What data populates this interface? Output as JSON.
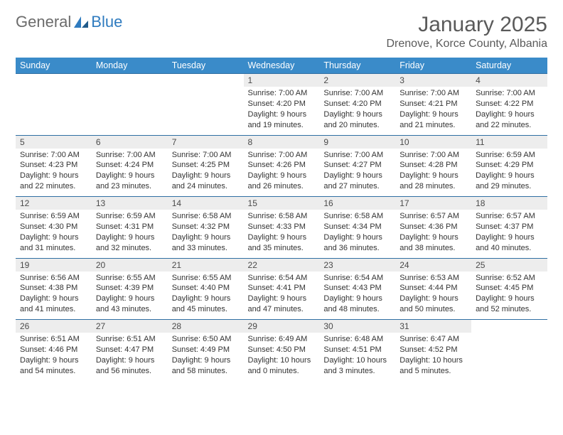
{
  "logo": {
    "text1": "General",
    "text2": "Blue"
  },
  "title": "January 2025",
  "location": "Drenove, Korce County, Albania",
  "colors": {
    "header_bg": "#3a8bc9",
    "header_text": "#ffffff",
    "rule": "#2f6fa3",
    "daynum_bg": "#ededed",
    "logo_gray": "#6b6b6b",
    "logo_blue": "#2f7bbf"
  },
  "weekdays": [
    "Sunday",
    "Monday",
    "Tuesday",
    "Wednesday",
    "Thursday",
    "Friday",
    "Saturday"
  ],
  "weeks": [
    [
      null,
      null,
      null,
      {
        "n": "1",
        "sr": "7:00 AM",
        "ss": "4:20 PM",
        "d1": "9 hours",
        "d2": "and 19 minutes."
      },
      {
        "n": "2",
        "sr": "7:00 AM",
        "ss": "4:20 PM",
        "d1": "9 hours",
        "d2": "and 20 minutes."
      },
      {
        "n": "3",
        "sr": "7:00 AM",
        "ss": "4:21 PM",
        "d1": "9 hours",
        "d2": "and 21 minutes."
      },
      {
        "n": "4",
        "sr": "7:00 AM",
        "ss": "4:22 PM",
        "d1": "9 hours",
        "d2": "and 22 minutes."
      }
    ],
    [
      {
        "n": "5",
        "sr": "7:00 AM",
        "ss": "4:23 PM",
        "d1": "9 hours",
        "d2": "and 22 minutes."
      },
      {
        "n": "6",
        "sr": "7:00 AM",
        "ss": "4:24 PM",
        "d1": "9 hours",
        "d2": "and 23 minutes."
      },
      {
        "n": "7",
        "sr": "7:00 AM",
        "ss": "4:25 PM",
        "d1": "9 hours",
        "d2": "and 24 minutes."
      },
      {
        "n": "8",
        "sr": "7:00 AM",
        "ss": "4:26 PM",
        "d1": "9 hours",
        "d2": "and 26 minutes."
      },
      {
        "n": "9",
        "sr": "7:00 AM",
        "ss": "4:27 PM",
        "d1": "9 hours",
        "d2": "and 27 minutes."
      },
      {
        "n": "10",
        "sr": "7:00 AM",
        "ss": "4:28 PM",
        "d1": "9 hours",
        "d2": "and 28 minutes."
      },
      {
        "n": "11",
        "sr": "6:59 AM",
        "ss": "4:29 PM",
        "d1": "9 hours",
        "d2": "and 29 minutes."
      }
    ],
    [
      {
        "n": "12",
        "sr": "6:59 AM",
        "ss": "4:30 PM",
        "d1": "9 hours",
        "d2": "and 31 minutes."
      },
      {
        "n": "13",
        "sr": "6:59 AM",
        "ss": "4:31 PM",
        "d1": "9 hours",
        "d2": "and 32 minutes."
      },
      {
        "n": "14",
        "sr": "6:58 AM",
        "ss": "4:32 PM",
        "d1": "9 hours",
        "d2": "and 33 minutes."
      },
      {
        "n": "15",
        "sr": "6:58 AM",
        "ss": "4:33 PM",
        "d1": "9 hours",
        "d2": "and 35 minutes."
      },
      {
        "n": "16",
        "sr": "6:58 AM",
        "ss": "4:34 PM",
        "d1": "9 hours",
        "d2": "and 36 minutes."
      },
      {
        "n": "17",
        "sr": "6:57 AM",
        "ss": "4:36 PM",
        "d1": "9 hours",
        "d2": "and 38 minutes."
      },
      {
        "n": "18",
        "sr": "6:57 AM",
        "ss": "4:37 PM",
        "d1": "9 hours",
        "d2": "and 40 minutes."
      }
    ],
    [
      {
        "n": "19",
        "sr": "6:56 AM",
        "ss": "4:38 PM",
        "d1": "9 hours",
        "d2": "and 41 minutes."
      },
      {
        "n": "20",
        "sr": "6:55 AM",
        "ss": "4:39 PM",
        "d1": "9 hours",
        "d2": "and 43 minutes."
      },
      {
        "n": "21",
        "sr": "6:55 AM",
        "ss": "4:40 PM",
        "d1": "9 hours",
        "d2": "and 45 minutes."
      },
      {
        "n": "22",
        "sr": "6:54 AM",
        "ss": "4:41 PM",
        "d1": "9 hours",
        "d2": "and 47 minutes."
      },
      {
        "n": "23",
        "sr": "6:54 AM",
        "ss": "4:43 PM",
        "d1": "9 hours",
        "d2": "and 48 minutes."
      },
      {
        "n": "24",
        "sr": "6:53 AM",
        "ss": "4:44 PM",
        "d1": "9 hours",
        "d2": "and 50 minutes."
      },
      {
        "n": "25",
        "sr": "6:52 AM",
        "ss": "4:45 PM",
        "d1": "9 hours",
        "d2": "and 52 minutes."
      }
    ],
    [
      {
        "n": "26",
        "sr": "6:51 AM",
        "ss": "4:46 PM",
        "d1": "9 hours",
        "d2": "and 54 minutes."
      },
      {
        "n": "27",
        "sr": "6:51 AM",
        "ss": "4:47 PM",
        "d1": "9 hours",
        "d2": "and 56 minutes."
      },
      {
        "n": "28",
        "sr": "6:50 AM",
        "ss": "4:49 PM",
        "d1": "9 hours",
        "d2": "and 58 minutes."
      },
      {
        "n": "29",
        "sr": "6:49 AM",
        "ss": "4:50 PM",
        "d1": "10 hours",
        "d2": "and 0 minutes."
      },
      {
        "n": "30",
        "sr": "6:48 AM",
        "ss": "4:51 PM",
        "d1": "10 hours",
        "d2": "and 3 minutes."
      },
      {
        "n": "31",
        "sr": "6:47 AM",
        "ss": "4:52 PM",
        "d1": "10 hours",
        "d2": "and 5 minutes."
      },
      null
    ]
  ],
  "labels": {
    "sunrise": "Sunrise: ",
    "sunset": "Sunset: ",
    "daylight": "Daylight: "
  }
}
